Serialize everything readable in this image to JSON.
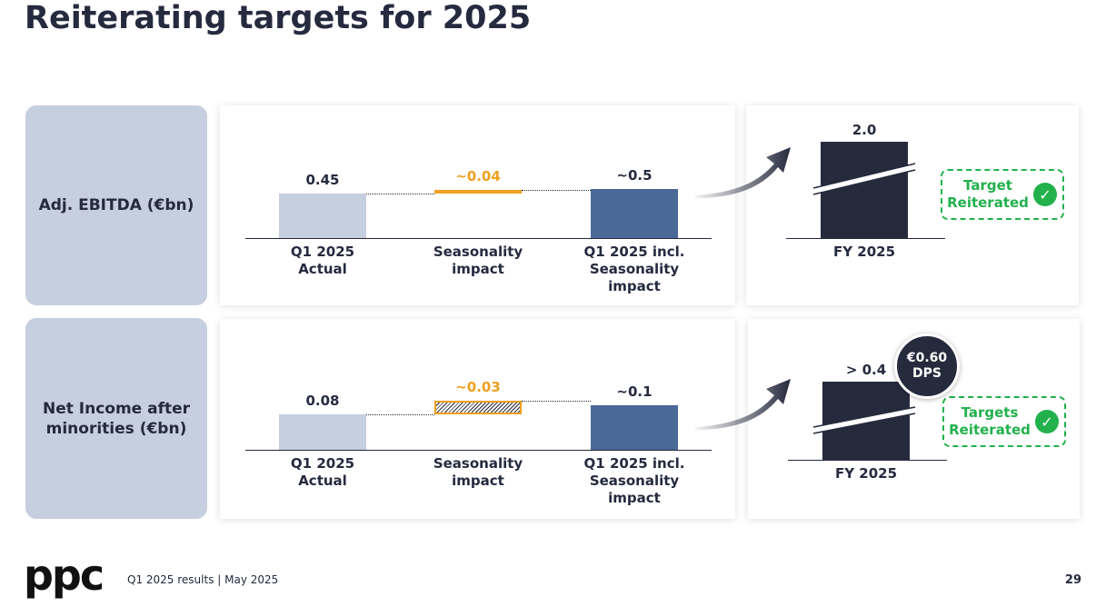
{
  "title": "Reiterating targets for 2025",
  "rows": [
    {
      "label": "Adj. EBITDA (€bn)"
    },
    {
      "label": "Net Income after minorities (€bn)"
    }
  ],
  "chart_data": [
    {
      "type": "waterfall",
      "categories": [
        "Q1 2025 Actual",
        "Seasonality impact",
        "Q1 2025 incl. Seasonality impact"
      ],
      "values": [
        0.45,
        0.04,
        0.5
      ],
      "value_labels": [
        "0.45",
        "~0.04",
        "~0.5"
      ],
      "measures": [
        "absolute",
        "relative",
        "total"
      ],
      "colors": [
        "#c5cfdf",
        "#f0a020",
        "#4a6898"
      ]
    },
    {
      "type": "waterfall",
      "categories": [
        "Q1 2025 Actual",
        "Seasonality impact",
        "Q1 2025 incl. Seasonality impact"
      ],
      "values": [
        0.08,
        0.03,
        0.1
      ],
      "value_labels": [
        "0.08",
        "~0.03",
        "~0.1"
      ],
      "measures": [
        "absolute",
        "relative",
        "total"
      ],
      "colors": [
        "#c5cfdf",
        "#f0a020",
        "#4a6898"
      ]
    },
    {
      "type": "bar",
      "categories": [
        "FY 2025"
      ],
      "values": [
        2.0
      ],
      "value_labels": [
        "2.0"
      ],
      "color": "#262a3d",
      "axis_break": true
    },
    {
      "type": "bar",
      "categories": [
        "FY 2025"
      ],
      "values": [
        0.4
      ],
      "value_labels": [
        "> 0.4"
      ],
      "color": "#262a3d",
      "axis_break": true
    }
  ],
  "badges": [
    {
      "text": "Target Reiterated"
    },
    {
      "text": "Targets Reiterated"
    }
  ],
  "dps": {
    "amount": "€0.60",
    "label": "DPS"
  },
  "footer": {
    "logo": "ppc",
    "text": "Q1 2025 results | May 2025",
    "page": "29"
  }
}
